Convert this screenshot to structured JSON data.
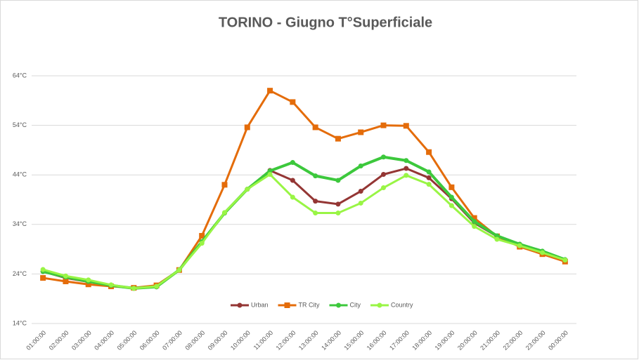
{
  "chart_data": {
    "type": "line",
    "title": "TORINO - Giugno  T°Superficiale",
    "categories": [
      "01:00:00",
      "02:00:00",
      "03:00:00",
      "04:00:00",
      "05:00:00",
      "06:00:00",
      "07:00:00",
      "08:00:00",
      "09:00:00",
      "10:00:00",
      "11:00:00",
      "12:00:00",
      "13:00:00",
      "14:00:00",
      "15:00:00",
      "16:00:00",
      "17:00:00",
      "18:00:00",
      "19:00:00",
      "20:00:00",
      "21:00:00",
      "22:00:00",
      "23:00:00",
      "00:00:00"
    ],
    "series": [
      {
        "name": "Urban",
        "color": "#943634",
        "marker": "circle",
        "values": [
          24.5,
          23.2,
          22.4,
          21.7,
          21.1,
          21.4,
          24.8,
          30.5,
          36.3,
          41.1,
          44.9,
          42.9,
          38.7,
          38.1,
          40.7,
          44.1,
          45.3,
          43.4,
          39.2,
          34.3,
          31.6,
          30,
          28.5,
          26.8
        ]
      },
      {
        "name": "TR City",
        "color": "#e46c0a",
        "marker": "square",
        "values": [
          23.2,
          22.5,
          21.9,
          21.5,
          21.2,
          21.7,
          24.8,
          31.7,
          42,
          53.6,
          61,
          58.7,
          53.6,
          51.3,
          52.6,
          54,
          53.9,
          48.6,
          41.5,
          35.3,
          31.6,
          29.5,
          28,
          26.5
        ]
      },
      {
        "name": "City",
        "color": "#3cc83c",
        "marker": "circle",
        "values": [
          24.5,
          23.4,
          22.5,
          21.7,
          21.1,
          21.4,
          24.8,
          30.5,
          36.3,
          41.1,
          44.8,
          46.5,
          43.8,
          42.9,
          45.8,
          47.6,
          46.9,
          44.6,
          39.5,
          34.6,
          31.7,
          30,
          28.6,
          26.9
        ]
      },
      {
        "name": "Country",
        "color": "#99f545",
        "marker": "circle",
        "values": [
          24.9,
          23.6,
          22.8,
          21.8,
          21.1,
          21.5,
          24.8,
          30.2,
          36.4,
          41.1,
          44.1,
          39.5,
          36.3,
          36.3,
          38.3,
          41.4,
          43.9,
          42.1,
          37.8,
          33.6,
          31,
          29.7,
          28.3,
          26.8
        ]
      }
    ],
    "ylim": [
      14,
      64
    ],
    "yticks": [
      {
        "value": 14,
        "label": "14°C"
      },
      {
        "value": 24,
        "label": "24°C"
      },
      {
        "value": 34,
        "label": "34°C"
      },
      {
        "value": 44,
        "label": "44°C"
      },
      {
        "value": 54,
        "label": "54°C"
      },
      {
        "value": 64,
        "label": "64°C"
      }
    ],
    "grid": true,
    "legend": "bottom"
  }
}
